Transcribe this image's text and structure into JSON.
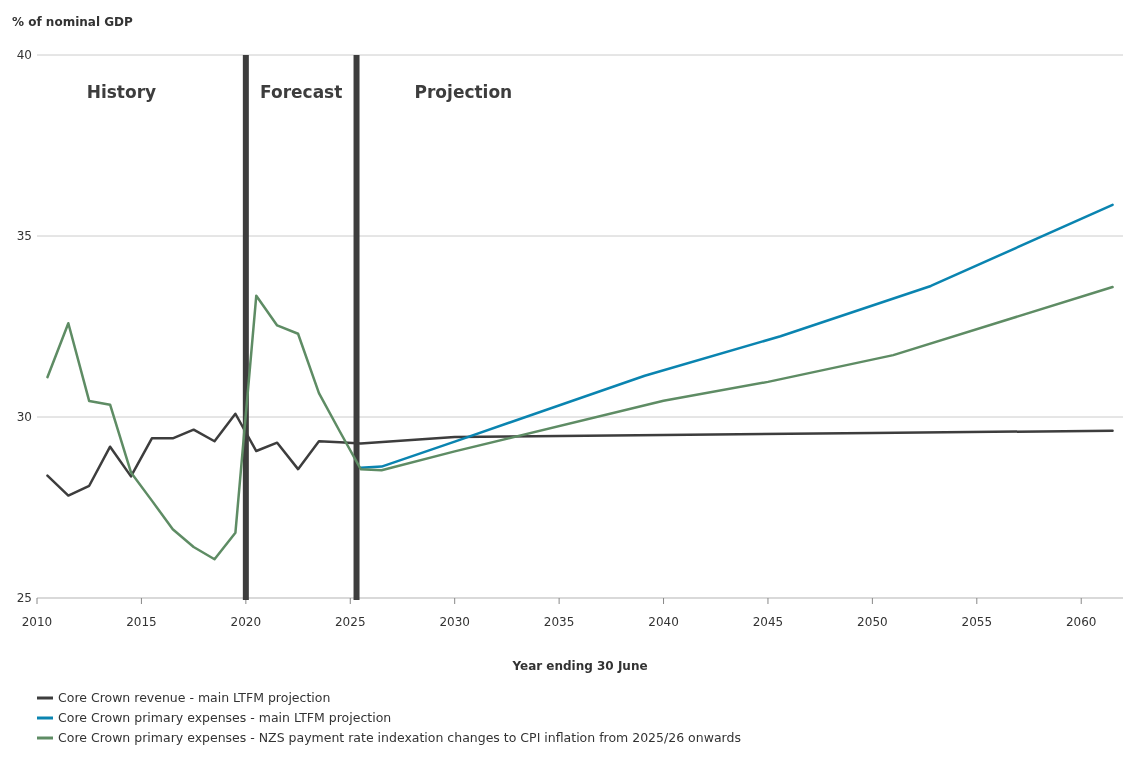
{
  "chart_data": {
    "type": "line",
    "ylabel": "% of nominal GDP",
    "xlabel": "Year ending 30 June",
    "xlim": [
      2010,
      2062
    ],
    "xticks": [
      2010,
      2015,
      2020,
      2025,
      2030,
      2035,
      2040,
      2045,
      2050,
      2055,
      2060
    ],
    "ylim": [
      25,
      40
    ],
    "yticks": [
      25,
      30,
      35,
      40
    ],
    "grid": "y",
    "legend": "bottom",
    "marker": "none",
    "line_style": "solid",
    "series": [
      {
        "name": "Core Crown revenue - main LTFM projection",
        "color": "#3d3d3d",
        "x": [
          2010.5,
          2011.5,
          2012.5,
          2013.5,
          2014.5,
          2015.5,
          2016.5,
          2017.5,
          2018.5,
          2019.5,
          2020.5,
          2021.5,
          2022.5,
          2023.5,
          2024.5,
          2025.5,
          2030,
          2040,
          2050,
          2061.5
        ],
        "values": [
          28.38,
          27.83,
          28.1,
          29.18,
          28.36,
          29.41,
          29.41,
          29.65,
          29.33,
          30.09,
          29.06,
          29.29,
          28.56,
          29.33,
          29.3,
          29.27,
          29.45,
          29.5,
          29.56,
          29.62
        ]
      },
      {
        "name": "Core Crown primary expenses - main LTFM projection",
        "color": "#0a84b0",
        "x": [
          2025.5,
          2026.5,
          2030,
          2039.1,
          2045.6,
          2052.8,
          2061.5
        ],
        "values": [
          28.6,
          28.63,
          29.32,
          31.14,
          32.23,
          33.62,
          35.86
        ]
      },
      {
        "name": "Core Crown primary expenses - NZS payment rate indexation changes to CPI inflation from 2025/26 onwards",
        "color": "#5e8c64",
        "x": [
          2010.5,
          2011.5,
          2012.5,
          2013.5,
          2014.5,
          2015.5,
          2016.5,
          2017.5,
          2018.5,
          2019.5,
          2020.5,
          2021.5,
          2022.5,
          2023.5,
          2024.5,
          2025.5,
          2026.5,
          2030,
          2040,
          2045,
          2051,
          2061.5
        ],
        "values": [
          31.1,
          32.59,
          30.44,
          30.34,
          28.47,
          27.69,
          26.9,
          26.41,
          26.07,
          26.8,
          33.35,
          32.53,
          32.3,
          30.66,
          29.6,
          28.56,
          28.53,
          29.05,
          30.45,
          30.97,
          31.71,
          33.59
        ]
      }
    ],
    "ref_lines": [
      {
        "axis": "x",
        "value": 2020,
        "color": "#3d3d3d"
      },
      {
        "axis": "x",
        "value": 2025.3,
        "color": "#3d3d3d"
      }
    ],
    "annotations": [
      "History",
      "Forecast",
      "Projection"
    ]
  }
}
